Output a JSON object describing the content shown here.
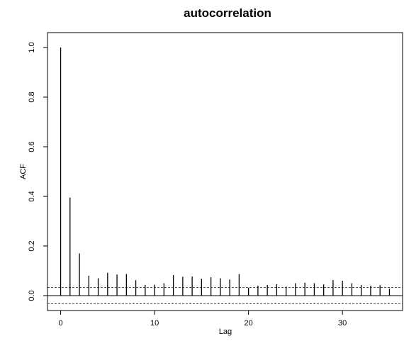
{
  "chart_data": {
    "type": "bar",
    "title": "autocorrelation",
    "xlabel": "Lag",
    "ylabel": "ACF",
    "x_ticks": [
      0,
      10,
      20,
      30
    ],
    "x_tick_labels": [
      "0",
      "10",
      "20",
      "30"
    ],
    "y_ticks": [
      0.0,
      0.2,
      0.4,
      0.6,
      0.8,
      1.0
    ],
    "y_tick_labels": [
      "0.0",
      "0.2",
      "0.4",
      "0.6",
      "0.8",
      "1.0"
    ],
    "xlim": [
      -1.4,
      36.4
    ],
    "ylim": [
      -0.06,
      1.06
    ],
    "lags": [
      0,
      1,
      2,
      3,
      4,
      5,
      6,
      7,
      8,
      9,
      10,
      11,
      12,
      13,
      14,
      15,
      16,
      17,
      18,
      19,
      20,
      21,
      22,
      23,
      24,
      25,
      26,
      27,
      28,
      29,
      30,
      31,
      32,
      33,
      34,
      35
    ],
    "values": [
      1.0,
      0.395,
      0.17,
      0.08,
      0.07,
      0.092,
      0.085,
      0.087,
      0.062,
      0.043,
      0.044,
      0.05,
      0.083,
      0.076,
      0.077,
      0.068,
      0.074,
      0.07,
      0.065,
      0.087,
      0.032,
      0.04,
      0.043,
      0.046,
      0.036,
      0.05,
      0.052,
      0.05,
      0.045,
      0.063,
      0.06,
      0.05,
      0.043,
      0.04,
      0.042,
      0.028
    ],
    "confidence_bounds": [
      0.033,
      -0.033
    ],
    "grid": false,
    "legend": false
  }
}
